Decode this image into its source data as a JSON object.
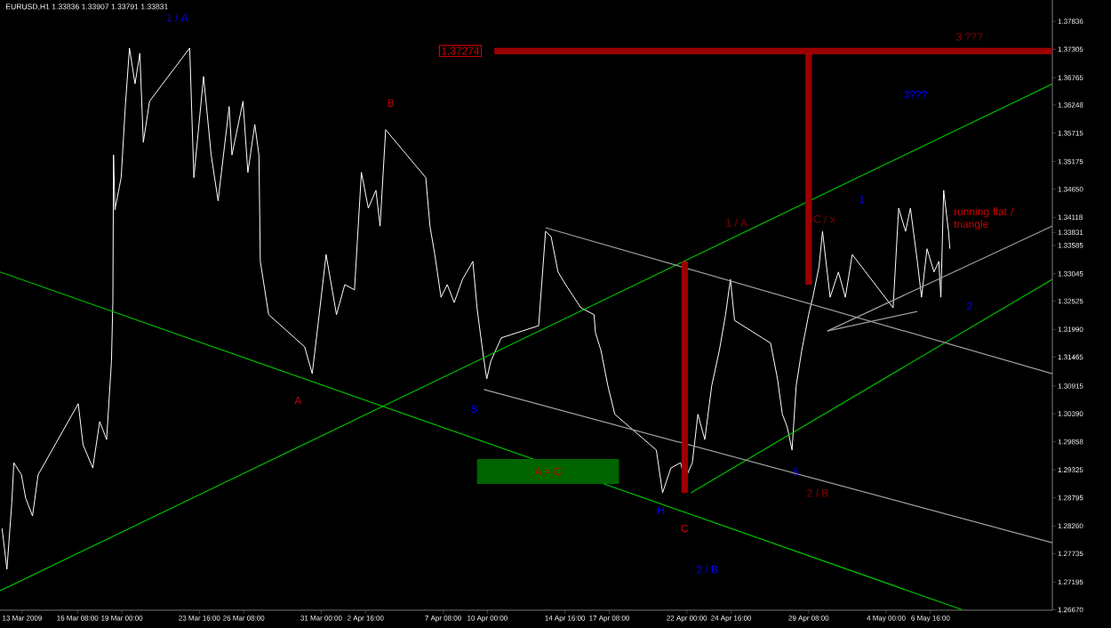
{
  "chart_data": {
    "type": "line",
    "title": "EURUSD,H1  1.33836 1.33907 1.33791 1.33831",
    "xlim": [
      "2009-03-11T16:00",
      "2009-05-14T00:00"
    ],
    "ylim": [
      1.26661,
      1.38241
    ],
    "xticks": [
      {
        "value": "2009-03-13T00:00",
        "label": "13 Mar 2009"
      },
      {
        "value": "2009-03-16T08:00",
        "label": "16 Mar 08:00"
      },
      {
        "value": "2009-03-19T00:00",
        "label": "19 Mar 00:00"
      },
      {
        "value": "2009-03-23T16:00",
        "label": "23 Mar 16:00"
      },
      {
        "value": "2009-03-26T08:00",
        "label": "26 Mar 08:00"
      },
      {
        "value": "2009-03-31T00:00",
        "label": "31 Mar 00:00"
      },
      {
        "value": "2009-04-02T16:00",
        "label": "2 Apr 16:00"
      },
      {
        "value": "2009-04-07T08:00",
        "label": "7 Apr 08:00"
      },
      {
        "value": "2009-04-10T00:00",
        "label": "10 Apr 00:00"
      },
      {
        "value": "2009-04-14T16:00",
        "label": "14 Apr 16:00"
      },
      {
        "value": "2009-04-17T08:00",
        "label": "17 Apr 08:00"
      },
      {
        "value": "2009-04-22T00:00",
        "label": "22 Apr 00:00"
      },
      {
        "value": "2009-04-24T16:00",
        "label": "24 Apr 16:00"
      },
      {
        "value": "2009-04-29T08:00",
        "label": "29 Apr 08:00"
      },
      {
        "value": "2009-05-04T00:00",
        "label": "4 May 00:00"
      },
      {
        "value": "2009-05-06T16:00",
        "label": "6 May 16:00"
      }
    ],
    "yticks": [
      {
        "value": 1.37836,
        "label": "1.37836"
      },
      {
        "value": 1.37305,
        "label": "1.37305"
      },
      {
        "value": 1.36765,
        "label": "1.36765"
      },
      {
        "value": 1.36248,
        "label": "1.36248"
      },
      {
        "value": 1.35715,
        "label": "1.35715"
      },
      {
        "value": 1.35175,
        "label": "1.35175"
      },
      {
        "value": 1.3465,
        "label": "1.34650"
      },
      {
        "value": 1.34118,
        "label": "1.34118"
      },
      {
        "value": 1.33831,
        "label": "1.33831"
      },
      {
        "value": 1.33585,
        "label": "1.33585"
      },
      {
        "value": 1.33045,
        "label": "1.33045"
      },
      {
        "value": 1.32525,
        "label": "1.32525"
      },
      {
        "value": 1.3199,
        "label": "1.31990"
      },
      {
        "value": 1.31465,
        "label": "1.31465"
      },
      {
        "value": 1.30915,
        "label": "1.30915"
      },
      {
        "value": 1.3039,
        "label": "1.30390"
      },
      {
        "value": 1.29858,
        "label": "1.29858"
      },
      {
        "value": 1.29325,
        "label": "1.29325"
      },
      {
        "value": 1.28795,
        "label": "1.28795"
      },
      {
        "value": 1.2826,
        "label": "1.28260"
      },
      {
        "value": 1.27735,
        "label": "1.27735"
      },
      {
        "value": 1.27195,
        "label": "1.27195"
      },
      {
        "value": 1.2667,
        "label": "1.26670"
      }
    ],
    "marker": "none",
    "series": [
      {
        "color": "#ffffff",
        "x": [
          "2009-03-11T19:00",
          "2009-03-12T02:00",
          "2009-03-12T09:00",
          "2009-03-12T12:00",
          "2009-03-12T23:00",
          "2009-03-13T05:00",
          "2009-03-13T15:00",
          "2009-03-13T23:00",
          "2009-03-16T09:00",
          "2009-03-16T16:00",
          "2009-03-17T06:00",
          "2009-03-17T16:00",
          "2009-03-18T02:00",
          "2009-03-18T09:00",
          "2009-03-18T11:00",
          "2009-03-18T12:00",
          "2009-03-18T14:00",
          "2009-03-18T23:00",
          "2009-03-19T05:00",
          "2009-03-19T11:00",
          "2009-03-19T19:00",
          "2009-03-20T02:00",
          "2009-03-20T07:00",
          "2009-03-20T16:00",
          "2009-03-23T02:00",
          "2009-03-23T08:00",
          "2009-03-23T22:00",
          "2009-03-24T09:00",
          "2009-03-24T19:00",
          "2009-03-25T11:00",
          "2009-03-25T15:00",
          "2009-03-26T07:00",
          "2009-03-26T14:00",
          "2009-03-27T00:00",
          "2009-03-27T06:00",
          "2009-03-27T08:00",
          "2009-03-27T20:00",
          "2009-03-30T00:00",
          "2009-03-30T11:00",
          "2009-03-30T21:00",
          "2009-03-31T07:00",
          "2009-03-31T22:00",
          "2009-04-01T10:00",
          "2009-04-02T00:00",
          "2009-04-02T10:00",
          "2009-04-02T20:00",
          "2009-04-03T07:00",
          "2009-04-03T13:00",
          "2009-04-03T21:00",
          "2009-04-06T07:00",
          "2009-04-06T13:00",
          "2009-04-06T20:00",
          "2009-04-07T05:00",
          "2009-04-07T14:00",
          "2009-04-08T00:00",
          "2009-04-08T12:00",
          "2009-04-09T03:00",
          "2009-04-09T09:00",
          "2009-04-09T17:00",
          "2009-04-09T23:00",
          "2009-04-10T05:00",
          "2009-04-10T20:00",
          "2009-04-13T02:00",
          "2009-04-13T12:00",
          "2009-04-13T20:00",
          "2009-04-14T06:00",
          "2009-04-14T17:00",
          "2009-04-15T05:00",
          "2009-04-15T15:00",
          "2009-04-16T10:00",
          "2009-04-16T12:00",
          "2009-04-16T20:00",
          "2009-04-17T06:00",
          "2009-04-17T16:00",
          "2009-04-20T04:00",
          "2009-04-20T13:00",
          "2009-04-21T01:00",
          "2009-04-21T15:00",
          "2009-04-21T21:00",
          "2009-04-22T08:00",
          "2009-04-22T16:00",
          "2009-04-23T02:00",
          "2009-04-23T12:00",
          "2009-04-23T23:00",
          "2009-04-24T08:00",
          "2009-04-24T15:00",
          "2009-04-24T21:00",
          "2009-04-27T01:00",
          "2009-04-27T11:00",
          "2009-04-27T18:00",
          "2009-04-28T01:00",
          "2009-04-28T08:00",
          "2009-04-28T14:00",
          "2009-04-28T22:00",
          "2009-04-29T08:00",
          "2009-04-29T14:00",
          "2009-04-29T23:00",
          "2009-04-30T04:00",
          "2009-04-30T15:00",
          "2009-05-01T03:00",
          "2009-05-01T13:00",
          "2009-05-01T23:00",
          "2009-05-04T10:00",
          "2009-05-04T18:00",
          "2009-05-05T04:00",
          "2009-05-05T11:00",
          "2009-05-05T21:00",
          "2009-05-06T03:00",
          "2009-05-06T11:00",
          "2009-05-06T21:00",
          "2009-05-07T04:00",
          "2009-05-07T07:00",
          "2009-05-07T11:00",
          "2009-05-07T18:00",
          "2009-05-07T20:00"
        ],
        "values": [
          1.2821,
          1.2744,
          1.2869,
          1.2946,
          1.2923,
          1.2879,
          1.2845,
          1.2923,
          1.3058,
          1.298,
          1.2936,
          1.3024,
          1.299,
          1.3139,
          1.325,
          1.353,
          1.3426,
          1.3487,
          1.3622,
          1.3733,
          1.3665,
          1.3723,
          1.3554,
          1.3632,
          1.3733,
          1.3487,
          1.3679,
          1.353,
          1.3443,
          1.3622,
          1.353,
          1.3632,
          1.3497,
          1.3588,
          1.353,
          1.3328,
          1.3227,
          1.3166,
          1.3115,
          1.3227,
          1.3341,
          1.3227,
          1.3284,
          1.3274,
          1.3497,
          1.3429,
          1.3463,
          1.3395,
          1.3578,
          1.3487,
          1.3395,
          1.3341,
          1.326,
          1.3284,
          1.325,
          1.3294,
          1.3328,
          1.324,
          1.3159,
          1.3105,
          1.3139,
          1.3183,
          1.3206,
          1.3385,
          1.3375,
          1.3308,
          1.3284,
          1.326,
          1.324,
          1.3227,
          1.3193,
          1.3159,
          1.3092,
          1.3038,
          1.297,
          1.2889,
          1.2936,
          1.2946,
          1.2913,
          1.2946,
          1.3038,
          1.299,
          1.3092,
          1.3159,
          1.3227,
          1.3294,
          1.3216,
          1.3173,
          1.3105,
          1.3038,
          1.3014,
          1.297,
          1.3092,
          1.3159,
          1.3227,
          1.326,
          1.3318,
          1.3385,
          1.326,
          1.3308,
          1.326,
          1.3341,
          1.324,
          1.3429,
          1.3385,
          1.3429,
          1.3328,
          1.326,
          1.3352,
          1.3308,
          1.3328,
          1.326,
          1.3463,
          1.3385,
          1.3352
        ]
      },
      {
        "color": "#00c000",
        "x": [
          "2009-03-11T16:00",
          "2009-05-08T14:00"
        ],
        "values": [
          1.3308,
          1.2667
        ]
      },
      {
        "color": "#00c000",
        "x": [
          "2009-03-11T16:00",
          "2009-05-14T00:00"
        ],
        "values": [
          1.2703,
          1.3665
        ]
      },
      {
        "color": "#00c000",
        "x": [
          "2009-04-22T06:00",
          "2009-05-14T00:00"
        ],
        "values": [
          1.2889,
          1.3294
        ]
      },
      {
        "color": "#a0a0a0",
        "x": [
          "2009-04-13T12:00",
          "2009-05-14T00:00"
        ],
        "values": [
          1.3392,
          1.3115
        ]
      },
      {
        "color": "#a0a0a0",
        "x": [
          "2009-04-09T19:00",
          "2009-05-14T00:00"
        ],
        "values": [
          1.3085,
          1.2794
        ]
      },
      {
        "color": "#a0a0a0",
        "x": [
          "2009-04-30T11:00",
          "2009-05-14T00:00"
        ],
        "values": [
          1.3196,
          1.3395
        ]
      },
      {
        "color": "#a0a0a0",
        "x": [
          "2009-04-30T11:00",
          "2009-05-05T21:00"
        ],
        "values": [
          1.3196,
          1.3233
        ]
      },
      {
        "color": "#9b0000",
        "x": [
          "2009-04-21T21:00",
          "2009-04-21T21:00"
        ],
        "values": [
          1.3328,
          1.2889
        ]
      },
      {
        "color": "#9b0000",
        "x": [
          "2009-04-29T08:00",
          "2009-04-29T08:00"
        ],
        "values": [
          1.37274,
          1.3284
        ]
      },
      {
        "color": "#9b0000",
        "x": [
          "2009-04-10T10:00",
          "2009-05-14T00:00"
        ],
        "values": [
          1.37274,
          1.37274
        ]
      },
      {
        "color": "#006400",
        "x": [
          "2009-04-09T09:00",
          "2009-04-17T22:00"
        ],
        "values": [
          null,
          null
        ],
        "lower": [
          1.2906,
          1.2906
        ],
        "upper": [
          1.2953,
          1.2953
        ]
      }
    ],
    "annotations": [
      {
        "text": "1 / A",
        "x": "2009-03-23T02:00",
        "y": 1.3733
      },
      {
        "text": "B",
        "x": "2009-04-03T21:00",
        "y": 1.3578
      },
      {
        "text": "A",
        "x": "2009-03-30T11:00",
        "y": 1.3115
      },
      {
        "text": "S",
        "x": "2009-04-09T23:00",
        "y": 1.3105
      },
      "A = C",
      {
        "text": "H",
        "x": "2009-04-20T13:00",
        "y": 1.2889
      },
      {
        "text": "C",
        "x": "2009-04-21T21:00",
        "y": 1.2889
      },
      "2 / B",
      {
        "text": "S",
        "x": "2009-04-28T08:00",
        "y": 1.297
      },
      "2 / B",
      "1 / A",
      {
        "text": "C / x",
        "x": "2009-04-30T04:00",
        "y": 1.3385
      },
      "1",
      {
        "text": "2",
        "x": "2009-05-07T07:00",
        "y": 1.326
      },
      "3???",
      {
        "text": "3 ???",
        "x": "2009-05-09T00:00",
        "y": 1.37274
      },
      {
        "text": "running flat / triangle",
        "x": "2009-05-07T11:00",
        "y": 1.3463
      },
      {
        "text": "1.37274",
        "x": "2009-04-10T10:00",
        "y": 1.37274
      }
    ]
  }
}
